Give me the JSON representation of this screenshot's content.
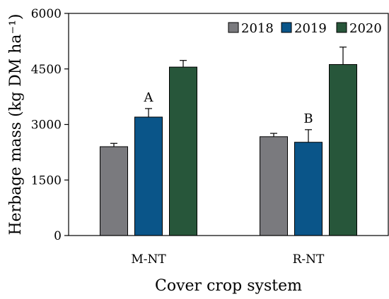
{
  "chart_data": {
    "type": "bar",
    "title": "",
    "xlabel": "Cover crop system",
    "ylabel": "Herbage mass (kg DM ha⁻¹)",
    "ylim": [
      0,
      6000
    ],
    "yticks": [
      0,
      1500,
      3000,
      4500,
      6000
    ],
    "categories": [
      "M-NT",
      "R-NT"
    ],
    "legend_position": "top-right",
    "grid": false,
    "series": [
      {
        "name": "2018",
        "color": "#7a7a7e",
        "values": [
          2400,
          2670
        ],
        "errors": [
          90,
          90
        ]
      },
      {
        "name": "2019",
        "color": "#0a5589",
        "values": [
          3200,
          2520
        ],
        "errors": [
          230,
          340
        ]
      },
      {
        "name": "2020",
        "color": "#27563a",
        "values": [
          4550,
          4620
        ],
        "errors": [
          180,
          470
        ]
      }
    ],
    "annotations": [
      {
        "text": "A",
        "category": 0,
        "series": 1
      },
      {
        "text": "B",
        "category": 1,
        "series": 1
      }
    ]
  }
}
